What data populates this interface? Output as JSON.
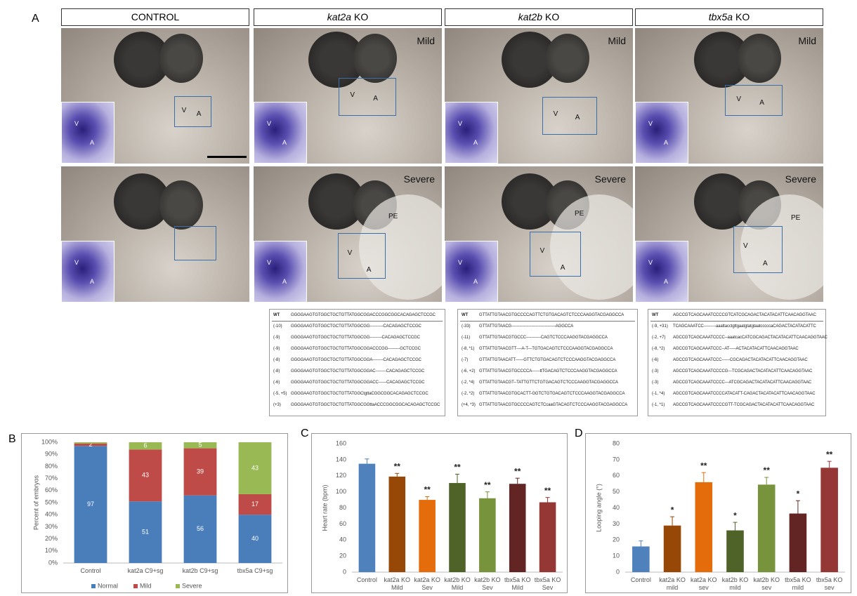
{
  "panel_a": {
    "label": "A",
    "columns": [
      {
        "header": "CONTROL",
        "images": [
          {
            "tag": null,
            "labels": [
              "V",
              "A"
            ],
            "inset_labels": [
              "V",
              "A"
            ]
          },
          {
            "tag": null,
            "labels": [],
            "inset_labels": [
              "V",
              "A"
            ]
          }
        ]
      },
      {
        "gene": "kat2a",
        "suffix": "KO",
        "images": [
          {
            "tag": "Mild",
            "labels": [
              "V",
              "A"
            ],
            "inset_labels": [
              "V",
              "A"
            ]
          },
          {
            "tag": "Severe",
            "labels": [
              "V",
              "A",
              "PE"
            ],
            "inset_labels": [
              "V",
              "A"
            ]
          }
        ]
      },
      {
        "gene": "kat2b",
        "suffix": "KO",
        "images": [
          {
            "tag": "Mild",
            "labels": [
              "V",
              "A"
            ],
            "inset_labels": [
              "V",
              "A"
            ]
          },
          {
            "tag": "Severe",
            "labels": [
              "V",
              "A",
              "PE"
            ],
            "inset_labels": [
              "V",
              "A"
            ]
          }
        ]
      },
      {
        "gene": "tbx5a",
        "suffix": "KO",
        "images": [
          {
            "tag": "Mild",
            "labels": [
              "V",
              "A"
            ],
            "inset_labels": [
              "V",
              "A"
            ]
          },
          {
            "tag": "Severe",
            "labels": [
              "V",
              "A",
              "PE"
            ],
            "inset_labels": [
              "V",
              "A"
            ]
          }
        ]
      }
    ],
    "sequences": [
      {
        "rows": [
          [
            "WT",
            "GGGGAAGTGTGGCTGCTGTTATGGCGGACCCGGCGGCACAGAGCTCCGC"
          ],
          [
            "(-10)",
            "GGGGAAGTGTGGCTGCTGTTATGGCGG----------CACAGAGCTCCGC"
          ],
          [
            "(-9)",
            "GGGGAAGTGTGGCTGCTGTTATGGCGG---------CACAGAGCTCCGC"
          ],
          [
            "(-9)",
            "GGGGAAGTGTGGCTGCTGTTATGGCGGACCCGG---------GCTCCGC"
          ],
          [
            "(-8)",
            "GGGGAAGTGTGGCTGCTGTTATGGCGGA--------CACAGAGCTCCGC"
          ],
          [
            "(-8)",
            "GGGGAAGTGTGGCTGCTGTTATGGCGGAC--------CACAGAGCTCCGC"
          ],
          [
            "(-6)",
            "GGGGAAGTGTGGCTGCTGTTATGGCGGACC------CACAGAGCTCCGC"
          ],
          [
            "(-5, +5)",
            "GGGGAAGTGTGGCTGCTGTTATGGCtgttaCGGCGGCACAGAGCTCCGC"
          ],
          [
            "(+3)",
            "GGGGAAGTGTGGCTGCTGTTATGGCGGttaACCCGGCGGCACAGAGCTCCGC"
          ]
        ]
      },
      {
        "rows": [
          [
            "WT",
            "GTTATTGTAACGTGCCCCAGTTCTGTGACAGTCTCCCAAGGTACGAGGCCA"
          ],
          [
            "(-33)",
            "GTTATTGTAACG---------------------------------AGGCCA"
          ],
          [
            "(-11)",
            "GTTATTGTAACGTGCCC-----------CAGTCTCCCAAGGTACGAGGCCA"
          ],
          [
            "(-8, *1)",
            "GTTATTGTAACGTT----A-T---TGTGACAGTCTCCCAAGGTACGAGGCCA"
          ],
          [
            "(-7)",
            "GTTATTGTAACATT------GTTCTGTGACAGTCTCCCAAGGTACGAGGCCA"
          ],
          [
            "(-6, +2)",
            "GTTATTGTAACGTGCCCCA------ttTGACAGTCTCCCAAGGTACGAGGCCA"
          ],
          [
            "(-2, *4)",
            "GTTATTGTAACGT--TATTGTTCTGTGACAGTCTCCCAAGGTACGAGGCCA"
          ],
          [
            "(-2, *2)",
            "GTTATTGTAACGTGCACTT-GGTCTGTGACAGTCTCCCAAGGTACGAGGCCA"
          ],
          [
            "(+4, *3)",
            "GTTATTGTAACGTGCCCCAGTCTCcaaGTACAGTCTCCCAAGGTACGAGGCCA"
          ]
        ]
      },
      {
        "rows": [
          [
            "WT",
            "AGCCGTCAGCAAATCCCCGTCATCGCAGACTACATACATTCAACAGGTAAC"
          ],
          [
            "(-9, +31)",
            "TCAGCAAATCC---------aaattacctgttgaatgtatgtaatcccccaCAGACTACATACATTC"
          ],
          [
            "(-2, +7)",
            "AGCCGTCAGCAAATCCCC--aaatcacCATCGCAGACTACATACATTCAACAGGTAAC"
          ],
          [
            "(-8, *2)",
            "AGCCGTCAGCAAATCCC--AT-----ACTACATACATTCAACAGGTAAC"
          ],
          [
            "(-6)",
            "AGCCGTCAGCAAATCCC------CGCAGACTACATACATTCAACAGGTAAC"
          ],
          [
            "(-3)",
            "AGCCGTCAGCAAATCCCCG---TCGCAGACTACATACATTCAACAGGTAAC"
          ],
          [
            "(-3)",
            "AGCCGTCAGCAAATCCCC---ATCGCAGACTACATACATTCAACAGGTAAC"
          ],
          [
            "(-1, *4)",
            "AGCCGTCAGCAAATCCCCATACATT-CAGACTACATACATTCAACAGGTAAC"
          ],
          [
            "(-1, *1)",
            "AGCCGTCAGCAAATCCCCGTT-TCGCAGACTACATACATTCAACAGGTAAC"
          ]
        ]
      }
    ]
  },
  "chart_data": [
    {
      "type": "stacked_bar",
      "label": "B",
      "ylabel": "Percent of embryos",
      "categories": [
        "Control",
        "kat2a C9+sg",
        "kat2b C9+sg",
        "tbx5a C9+sg"
      ],
      "series": [
        {
          "name": "Normal",
          "color": "#4a7ebb",
          "values": [
            97,
            51,
            56,
            40
          ]
        },
        {
          "name": "Mild",
          "color": "#be4b48",
          "values": [
            2,
            43,
            39,
            17
          ]
        },
        {
          "name": "Severe",
          "color": "#98b954",
          "values": [
            1,
            6,
            5,
            43
          ],
          "value_labels": [
            null,
            "6",
            "5",
            "43"
          ]
        }
      ],
      "ylim": [
        0,
        100
      ],
      "yticks": [
        {
          "value": 0,
          "label": "0%"
        },
        {
          "value": 10,
          "label": "10%"
        },
        {
          "value": 20,
          "label": "20%"
        },
        {
          "value": 30,
          "label": "30%"
        },
        {
          "value": 40,
          "label": "40%"
        },
        {
          "value": 50,
          "label": "50%"
        },
        {
          "value": 60,
          "label": "60%"
        },
        {
          "value": 70,
          "label": "70%"
        },
        {
          "value": 80,
          "label": "80%"
        },
        {
          "value": 90,
          "label": "90%"
        },
        {
          "value": 100,
          "label": "100%"
        }
      ],
      "legend": "bottom"
    },
    {
      "type": "bar",
      "label": "C",
      "ylabel": "Heart rate (bpm)",
      "categories": [
        "Control",
        "kat2a KO Mild",
        "kat2a KO Sev",
        "kat2b KO Mild",
        "kat2b KO Sev",
        "tbx5a KO Mild",
        "tbx5a KO Sev"
      ],
      "values": [
        135,
        119,
        90,
        111,
        92,
        110,
        87
      ],
      "errors": [
        6,
        4,
        4,
        11,
        8,
        7,
        6
      ],
      "significance": [
        null,
        "**",
        "**",
        "**",
        "**",
        "**",
        "**"
      ],
      "colors": [
        "#4f81bd",
        "#974706",
        "#e46c0a",
        "#4f6228",
        "#77933c",
        "#632523",
        "#953735"
      ],
      "ylim": [
        0,
        160
      ],
      "yticks": [
        0,
        20,
        40,
        60,
        80,
        100,
        120,
        140,
        160
      ]
    },
    {
      "type": "bar",
      "label": "D",
      "ylabel": "Looping angle (°)",
      "categories": [
        "Control",
        "kat2a KO mild",
        "kat2a KO sev",
        "kat2b KO mild",
        "kat2b KO sev",
        "tbx5a KO mild",
        "tbx5a KO sev"
      ],
      "values": [
        16,
        29,
        56,
        26,
        54.5,
        36.5,
        65
      ],
      "errors": [
        3.5,
        5.5,
        6,
        5,
        4.5,
        8,
        4
      ],
      "significance": [
        null,
        "*",
        "**",
        "*",
        "**",
        "*",
        "**"
      ],
      "colors": [
        "#4f81bd",
        "#974706",
        "#e46c0a",
        "#4f6228",
        "#77933c",
        "#632523",
        "#953735"
      ],
      "ylim": [
        0,
        80
      ],
      "yticks": [
        0,
        10,
        20,
        30,
        40,
        50,
        60,
        70,
        80
      ]
    }
  ]
}
